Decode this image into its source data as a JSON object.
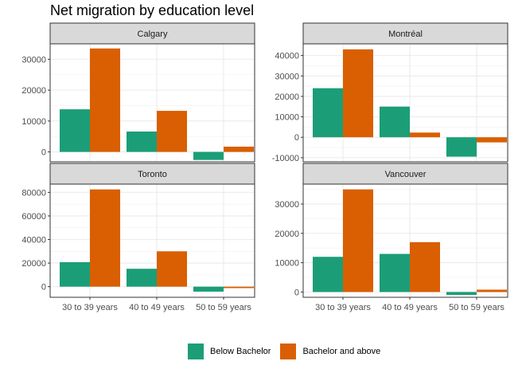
{
  "chart_data": {
    "type": "bar",
    "title": "Net migration by education level",
    "categories": [
      "30 to 39 years",
      "40 to 49 years",
      "50 to 59 years"
    ],
    "series_names": [
      "Below Bachelor",
      "Bachelor and above"
    ],
    "colors": [
      "#1b9e77",
      "#d95f02"
    ],
    "legend_position": "bottom",
    "panels": [
      {
        "name": "Calgary",
        "ylim": [
          -3200,
          35000
        ],
        "yticks": [
          0,
          10000,
          20000,
          30000
        ],
        "series": [
          {
            "name": "Below Bachelor",
            "values": [
              13800,
              6600,
              -2600
            ]
          },
          {
            "name": "Bachelor and above",
            "values": [
              33500,
              13300,
              1700
            ]
          }
        ]
      },
      {
        "name": "Montréal",
        "ylim": [
          -12000,
          45700
        ],
        "yticks": [
          -10000,
          0,
          10000,
          20000,
          30000,
          40000
        ],
        "series": [
          {
            "name": "Below Bachelor",
            "values": [
              24000,
              15000,
              -9500
            ]
          },
          {
            "name": "Bachelor and above",
            "values": [
              43000,
              2300,
              -2500
            ]
          }
        ]
      },
      {
        "name": "Toronto",
        "ylim": [
          -9000,
          87000
        ],
        "yticks": [
          0,
          20000,
          40000,
          60000,
          80000
        ],
        "series": [
          {
            "name": "Below Bachelor",
            "values": [
              20800,
              15200,
              -4200
            ]
          },
          {
            "name": "Bachelor and above",
            "values": [
              82500,
              30000,
              -1200
            ]
          }
        ]
      },
      {
        "name": "Vancouver",
        "ylim": [
          -1800,
          36800
        ],
        "yticks": [
          0,
          10000,
          20000,
          30000
        ],
        "series": [
          {
            "name": "Below Bachelor",
            "values": [
              12000,
              13000,
              -1000
            ]
          },
          {
            "name": "Bachelor and above",
            "values": [
              35000,
              17000,
              800
            ]
          }
        ]
      }
    ]
  }
}
